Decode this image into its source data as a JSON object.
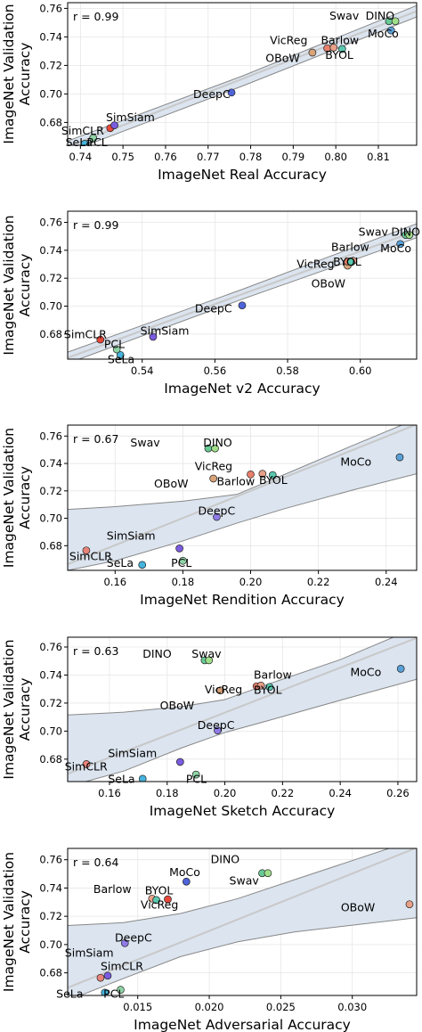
{
  "colors": {
    "band_fill": "#dbe4ef",
    "band_edge": "#888888",
    "fit_line": "#c8c8c8",
    "grid": "#e6e6e6",
    "point_edge": "#222222",
    "axis": "#000000"
  },
  "chart_data": [
    {
      "type": "scatter",
      "xlabel": "ImageNet Real Accuracy",
      "ylabel": [
        "ImageNet Validation",
        "Accuracy"
      ],
      "r_label": "r = 0.99",
      "xlim": [
        0.737,
        0.819
      ],
      "ylim": [
        0.664,
        0.764
      ],
      "xticks": [
        0.74,
        0.75,
        0.76,
        0.77,
        0.78,
        0.79,
        0.8,
        0.81
      ],
      "xtick_labels": [
        "0.74",
        "0.75",
        "0.76",
        "0.77",
        "0.78",
        "0.79",
        "0.80",
        "0.81"
      ],
      "yticks": [
        0.68,
        0.7,
        0.72,
        0.74,
        0.76
      ],
      "ytick_labels": [
        "0.68",
        "0.70",
        "0.72",
        "0.74",
        "0.76"
      ],
      "grid": true,
      "fit": {
        "x": [
          0.737,
          0.819
        ],
        "y": [
          0.663,
          0.758
        ]
      },
      "band": {
        "x": [
          0.737,
          0.778,
          0.819
        ],
        "upper": [
          0.667,
          0.7125,
          0.762
        ],
        "lower": [
          0.659,
          0.7055,
          0.754
        ]
      },
      "points": [
        {
          "name": "SimCLR",
          "x": 0.747,
          "y": 0.676,
          "color": "#e8483b",
          "label_x": 0.7355,
          "label_y": 0.6715
        },
        {
          "name": "SimSiam",
          "x": 0.748,
          "y": 0.678,
          "color": "#7a5ce0",
          "label_x": 0.746,
          "label_y": 0.681
        },
        {
          "name": "SeLa",
          "x": 0.741,
          "y": 0.665,
          "color": "#45b3db",
          "label_x": 0.7365,
          "label_y": 0.6635
        },
        {
          "name": "PCL",
          "x": 0.743,
          "y": 0.669,
          "color": "#8fd4a6",
          "label_x": 0.7415,
          "label_y": 0.6635
        },
        {
          "name": "DeepC",
          "x": 0.7755,
          "y": 0.701,
          "color": "#4f63d9",
          "label_x": 0.7665,
          "label_y": 0.697
        },
        {
          "name": "OBoW",
          "x": 0.7945,
          "y": 0.729,
          "color": "#d9a37a",
          "label_x": 0.7835,
          "label_y": 0.7225
        },
        {
          "name": "VicReg",
          "x": 0.798,
          "y": 0.732,
          "color": "#e87f6b",
          "label_x": 0.7845,
          "label_y": 0.735
        },
        {
          "name": "Barlow",
          "x": 0.7995,
          "y": 0.7325,
          "color": "#e8a088",
          "label_x": 0.7965,
          "label_y": 0.735
        },
        {
          "name": "BYOL",
          "x": 0.8015,
          "y": 0.7315,
          "color": "#59c9b0",
          "label_x": 0.7975,
          "label_y": 0.7245
        },
        {
          "name": "Swav",
          "x": 0.8125,
          "y": 0.751,
          "color": "#68c995",
          "label_x": 0.7985,
          "label_y": 0.752
        },
        {
          "name": "DINO",
          "x": 0.814,
          "y": 0.751,
          "color": "#a0de8a",
          "label_x": 0.807,
          "label_y": 0.752
        },
        {
          "name": "MoCo",
          "x": 0.813,
          "y": 0.7445,
          "color": "#5aa0d6",
          "label_x": 0.8075,
          "label_y": 0.7395
        }
      ]
    },
    {
      "type": "scatter",
      "xlabel": "ImageNet v2 Accuracy",
      "ylabel": [
        "ImageNet Validation",
        "Accuracy"
      ],
      "r_label": "r = 0.99",
      "xlim": [
        0.5195,
        0.6155
      ],
      "ylim": [
        0.662,
        0.768
      ],
      "xticks": [
        0.54,
        0.56,
        0.58,
        0.6
      ],
      "xtick_labels": [
        "0.54",
        "0.56",
        "0.58",
        "0.60"
      ],
      "yticks": [
        0.68,
        0.7,
        0.72,
        0.74,
        0.76
      ],
      "ytick_labels": [
        "0.68",
        "0.70",
        "0.72",
        "0.74",
        "0.76"
      ],
      "grid": true,
      "fit": {
        "x": [
          0.5195,
          0.6155
        ],
        "y": [
          0.663,
          0.754
        ]
      },
      "band": {
        "x": [
          0.5195,
          0.567,
          0.6155
        ],
        "upper": [
          0.667,
          0.7115,
          0.759
        ],
        "lower": [
          0.659,
          0.7045,
          0.749
        ]
      },
      "points": [
        {
          "name": "SimCLR",
          "x": 0.5285,
          "y": 0.676,
          "color": "#e8483b",
          "label_x": 0.5185,
          "label_y": 0.677
        },
        {
          "name": "SimSiam",
          "x": 0.543,
          "y": 0.678,
          "color": "#7a5ce0",
          "label_x": 0.5395,
          "label_y": 0.6795
        },
        {
          "name": "SeLa",
          "x": 0.534,
          "y": 0.665,
          "color": "#45b3db",
          "label_x": 0.5305,
          "label_y": 0.659
        },
        {
          "name": "PCL",
          "x": 0.533,
          "y": 0.669,
          "color": "#8fd4a6",
          "label_x": 0.5295,
          "label_y": 0.67
        },
        {
          "name": "DeepC",
          "x": 0.5675,
          "y": 0.7005,
          "color": "#4f63d9",
          "label_x": 0.5545,
          "label_y": 0.6955
        },
        {
          "name": "OBoW",
          "x": 0.5965,
          "y": 0.729,
          "color": "#d9a37a",
          "label_x": 0.5865,
          "label_y": 0.7135
        },
        {
          "name": "VicReg",
          "x": 0.5965,
          "y": 0.732,
          "color": "#e87f6b",
          "label_x": 0.5825,
          "label_y": 0.7275
        },
        {
          "name": "Barlow",
          "x": 0.598,
          "y": 0.7325,
          "color": "#e8a088",
          "label_x": 0.592,
          "label_y": 0.7395
        },
        {
          "name": "BYOL",
          "x": 0.5975,
          "y": 0.7315,
          "color": "#59c9b0",
          "label_x": 0.5925,
          "label_y": 0.729
        },
        {
          "name": "Swav",
          "x": 0.6125,
          "y": 0.751,
          "color": "#68c995",
          "label_x": 0.5995,
          "label_y": 0.7505
        },
        {
          "name": "DINO",
          "x": 0.6135,
          "y": 0.751,
          "color": "#a0de8a",
          "label_x": 0.6085,
          "label_y": 0.7505
        },
        {
          "name": "MoCo",
          "x": 0.611,
          "y": 0.7445,
          "color": "#5aa0d6",
          "label_x": 0.6055,
          "label_y": 0.7385
        }
      ]
    },
    {
      "type": "scatter",
      "xlabel": "ImageNet Rendition Accuracy",
      "ylabel": [
        "ImageNet Validation",
        "Accuracy"
      ],
      "r_label": "r = 0.67",
      "xlim": [
        0.146,
        0.249
      ],
      "ylim": [
        0.662,
        0.768
      ],
      "xticks": [
        0.16,
        0.18,
        0.2,
        0.22,
        0.24
      ],
      "xtick_labels": [
        "0.16",
        "0.18",
        "0.20",
        "0.22",
        "0.24"
      ],
      "yticks": [
        0.68,
        0.7,
        0.72,
        0.74,
        0.76
      ],
      "ytick_labels": [
        "0.68",
        "0.70",
        "0.72",
        "0.74",
        "0.76"
      ],
      "grid": true,
      "fit": {
        "x": [
          0.146,
          0.249
        ],
        "y": [
          0.6665,
          0.7685
        ]
      },
      "band": {
        "x": [
          0.146,
          0.16,
          0.18,
          0.196,
          0.21,
          0.23,
          0.249
        ],
        "upper": [
          0.7065,
          0.7085,
          0.7125,
          0.7175,
          0.732,
          0.753,
          0.7725
        ],
        "lower": [
          0.662,
          0.669,
          0.6835,
          0.6965,
          0.707,
          0.7205,
          0.7325
        ]
      },
      "points": [
        {
          "name": "SimCLR",
          "x": 0.1515,
          "y": 0.6765,
          "color": "#e8837a",
          "label_x": 0.1465,
          "label_y": 0.6695
        },
        {
          "name": "SimSiam",
          "x": 0.179,
          "y": 0.678,
          "color": "#7a5ce0",
          "label_x": 0.1575,
          "label_y": 0.6845
        },
        {
          "name": "SeLa",
          "x": 0.168,
          "y": 0.666,
          "color": "#45b3db",
          "label_x": 0.1575,
          "label_y": 0.6645
        },
        {
          "name": "PCL",
          "x": 0.18,
          "y": 0.669,
          "color": "#8fd4a6",
          "label_x": 0.1765,
          "label_y": 0.6645
        },
        {
          "name": "DeepC",
          "x": 0.19,
          "y": 0.701,
          "color": "#8f7be8",
          "label_x": 0.1845,
          "label_y": 0.7025
        },
        {
          "name": "OBoW",
          "x": 0.189,
          "y": 0.729,
          "color": "#d9a37a",
          "label_x": 0.1715,
          "label_y": 0.7225
        },
        {
          "name": "VicReg",
          "x": 0.2,
          "y": 0.732,
          "color": "#e87f6b",
          "label_x": 0.1835,
          "label_y": 0.735
        },
        {
          "name": "Barlow",
          "x": 0.2035,
          "y": 0.7325,
          "color": "#e8a088",
          "label_x": 0.19,
          "label_y": 0.724
        },
        {
          "name": "BYOL",
          "x": 0.2065,
          "y": 0.7315,
          "color": "#59c9b0",
          "label_x": 0.2025,
          "label_y": 0.725
        },
        {
          "name": "Swav",
          "x": 0.1875,
          "y": 0.751,
          "color": "#68c995",
          "label_x": 0.1645,
          "label_y": 0.7525
        },
        {
          "name": "DINO",
          "x": 0.1895,
          "y": 0.751,
          "color": "#a0de8a",
          "label_x": 0.186,
          "label_y": 0.7525
        },
        {
          "name": "MoCo",
          "x": 0.244,
          "y": 0.7445,
          "color": "#5aa0d6",
          "label_x": 0.2265,
          "label_y": 0.7385
        }
      ]
    },
    {
      "type": "scatter",
      "xlabel": "ImageNet Sketch Accuracy",
      "ylabel": [
        "ImageNet Validation",
        "Accuracy"
      ],
      "r_label": "r = 0.63",
      "xlim": [
        0.1455,
        0.2665
      ],
      "ylim": [
        0.664,
        0.767
      ],
      "xticks": [
        0.16,
        0.18,
        0.2,
        0.22,
        0.24,
        0.26
      ],
      "xtick_labels": [
        "0.16",
        "0.18",
        "0.20",
        "0.22",
        "0.24",
        "0.26"
      ],
      "yticks": [
        0.68,
        0.7,
        0.72,
        0.74,
        0.76
      ],
      "ytick_labels": [
        "0.68",
        "0.70",
        "0.72",
        "0.74",
        "0.76"
      ],
      "grid": true,
      "fit": {
        "x": [
          0.1455,
          0.2665
        ],
        "y": [
          0.6695,
          0.7665
        ]
      },
      "band": {
        "x": [
          0.1455,
          0.165,
          0.185,
          0.2,
          0.215,
          0.24,
          0.2665
        ],
        "upper": [
          0.7115,
          0.7135,
          0.7175,
          0.7225,
          0.7335,
          0.751,
          0.774
        ],
        "lower": [
          0.6605,
          0.6715,
          0.688,
          0.699,
          0.7075,
          0.722,
          0.737
        ]
      },
      "points": [
        {
          "name": "SimCLR",
          "x": 0.152,
          "y": 0.6765,
          "color": "#e8837a",
          "label_x": 0.1445,
          "label_y": 0.672
        },
        {
          "name": "SimSiam",
          "x": 0.1845,
          "y": 0.678,
          "color": "#7a5ce0",
          "label_x": 0.1595,
          "label_y": 0.6815
        },
        {
          "name": "SeLa",
          "x": 0.1715,
          "y": 0.666,
          "color": "#45b3db",
          "label_x": 0.1595,
          "label_y": 0.663
        },
        {
          "name": "PCL",
          "x": 0.19,
          "y": 0.669,
          "color": "#8fd4a6",
          "label_x": 0.1865,
          "label_y": 0.663
        },
        {
          "name": "DeepC",
          "x": 0.1975,
          "y": 0.7005,
          "color": "#8f7be8",
          "label_x": 0.1905,
          "label_y": 0.7015
        },
        {
          "name": "OBoW",
          "x": 0.1985,
          "y": 0.729,
          "color": "#d9a37a",
          "label_x": 0.1775,
          "label_y": 0.7155
        },
        {
          "name": "VicReg",
          "x": 0.211,
          "y": 0.732,
          "color": "#e87f6b",
          "label_x": 0.193,
          "label_y": 0.727
        },
        {
          "name": "Barlow",
          "x": 0.2125,
          "y": 0.7325,
          "color": "#e8a088",
          "label_x": 0.21,
          "label_y": 0.7375
        },
        {
          "name": "BYOL",
          "x": 0.2155,
          "y": 0.7315,
          "color": "#59c9b0",
          "label_x": 0.21,
          "label_y": 0.7265
        },
        {
          "name": "Swav",
          "x": 0.193,
          "y": 0.7505,
          "color": "#68c995",
          "label_x": 0.1885,
          "label_y": 0.7525
        },
        {
          "name": "DINO",
          "x": 0.1945,
          "y": 0.7505,
          "color": "#a0de8a",
          "label_x": 0.1715,
          "label_y": 0.7525
        },
        {
          "name": "MoCo",
          "x": 0.261,
          "y": 0.7445,
          "color": "#5aa0d6",
          "label_x": 0.2435,
          "label_y": 0.7395
        }
      ]
    },
    {
      "type": "scatter",
      "xlabel": "ImageNet Adversarial Accuracy",
      "ylabel": [
        "ImageNet Validation",
        "Accuracy"
      ],
      "r_label": "r = 0.64",
      "xlim": [
        0.0101,
        0.0345
      ],
      "ylim": [
        0.664,
        0.768
      ],
      "xticks": [
        0.015,
        0.02,
        0.025,
        0.03
      ],
      "xtick_labels": [
        "0.015",
        "0.020",
        "0.025",
        "0.030"
      ],
      "yticks": [
        0.68,
        0.7,
        0.72,
        0.74,
        0.76
      ],
      "ytick_labels": [
        "0.68",
        "0.70",
        "0.72",
        "0.74",
        "0.76"
      ],
      "grid": true,
      "fit": {
        "x": [
          0.0101,
          0.0345
        ],
        "y": [
          0.6695,
          0.7685
        ]
      },
      "band": {
        "x": [
          0.0101,
          0.014,
          0.018,
          0.022,
          0.026,
          0.0345
        ],
        "upper": [
          0.7135,
          0.7155,
          0.722,
          0.7325,
          0.746,
          0.7745
        ],
        "lower": [
          0.6605,
          0.676,
          0.6915,
          0.702,
          0.709,
          0.719
        ]
      },
      "points": [
        {
          "name": "SimCLR",
          "x": 0.0124,
          "y": 0.6765,
          "color": "#e8837a",
          "label_x": 0.0124,
          "label_y": 0.682
        },
        {
          "name": "SimSiam",
          "x": 0.0129,
          "y": 0.678,
          "color": "#7a5ce0",
          "label_x": 0.0099,
          "label_y": 0.6915
        },
        {
          "name": "SeLa",
          "x": 0.0127,
          "y": 0.666,
          "color": "#45b3db",
          "label_x": 0.0093,
          "label_y": 0.6625
        },
        {
          "name": "PCL",
          "x": 0.0138,
          "y": 0.668,
          "color": "#8fd4a6",
          "label_x": 0.0126,
          "label_y": 0.6625
        },
        {
          "name": "DeepC",
          "x": 0.0141,
          "y": 0.701,
          "color": "#8f7be8",
          "label_x": 0.0134,
          "label_y": 0.702
        },
        {
          "name": "OBoW",
          "x": 0.034,
          "y": 0.7285,
          "color": "#e8a088",
          "label_x": 0.0292,
          "label_y": 0.7235
        },
        {
          "name": "VicReg",
          "x": 0.0171,
          "y": 0.732,
          "color": "#e8483b",
          "label_x": 0.0152,
          "label_y": 0.7255
        },
        {
          "name": "Barlow",
          "x": 0.016,
          "y": 0.7325,
          "color": "#e8a088",
          "label_x": 0.0119,
          "label_y": 0.7365
        },
        {
          "name": "BYOL",
          "x": 0.0163,
          "y": 0.7315,
          "color": "#59c9b0",
          "label_x": 0.0155,
          "label_y": 0.7355
        },
        {
          "name": "Swav",
          "x": 0.0237,
          "y": 0.7505,
          "color": "#68c995",
          "label_x": 0.0214,
          "label_y": 0.7425
        },
        {
          "name": "DINO",
          "x": 0.0241,
          "y": 0.7505,
          "color": "#a0de8a",
          "label_x": 0.0201,
          "label_y": 0.7575
        },
        {
          "name": "MoCo",
          "x": 0.0184,
          "y": 0.7445,
          "color": "#4f63d9",
          "label_x": 0.0172,
          "label_y": 0.7485
        }
      ]
    }
  ]
}
